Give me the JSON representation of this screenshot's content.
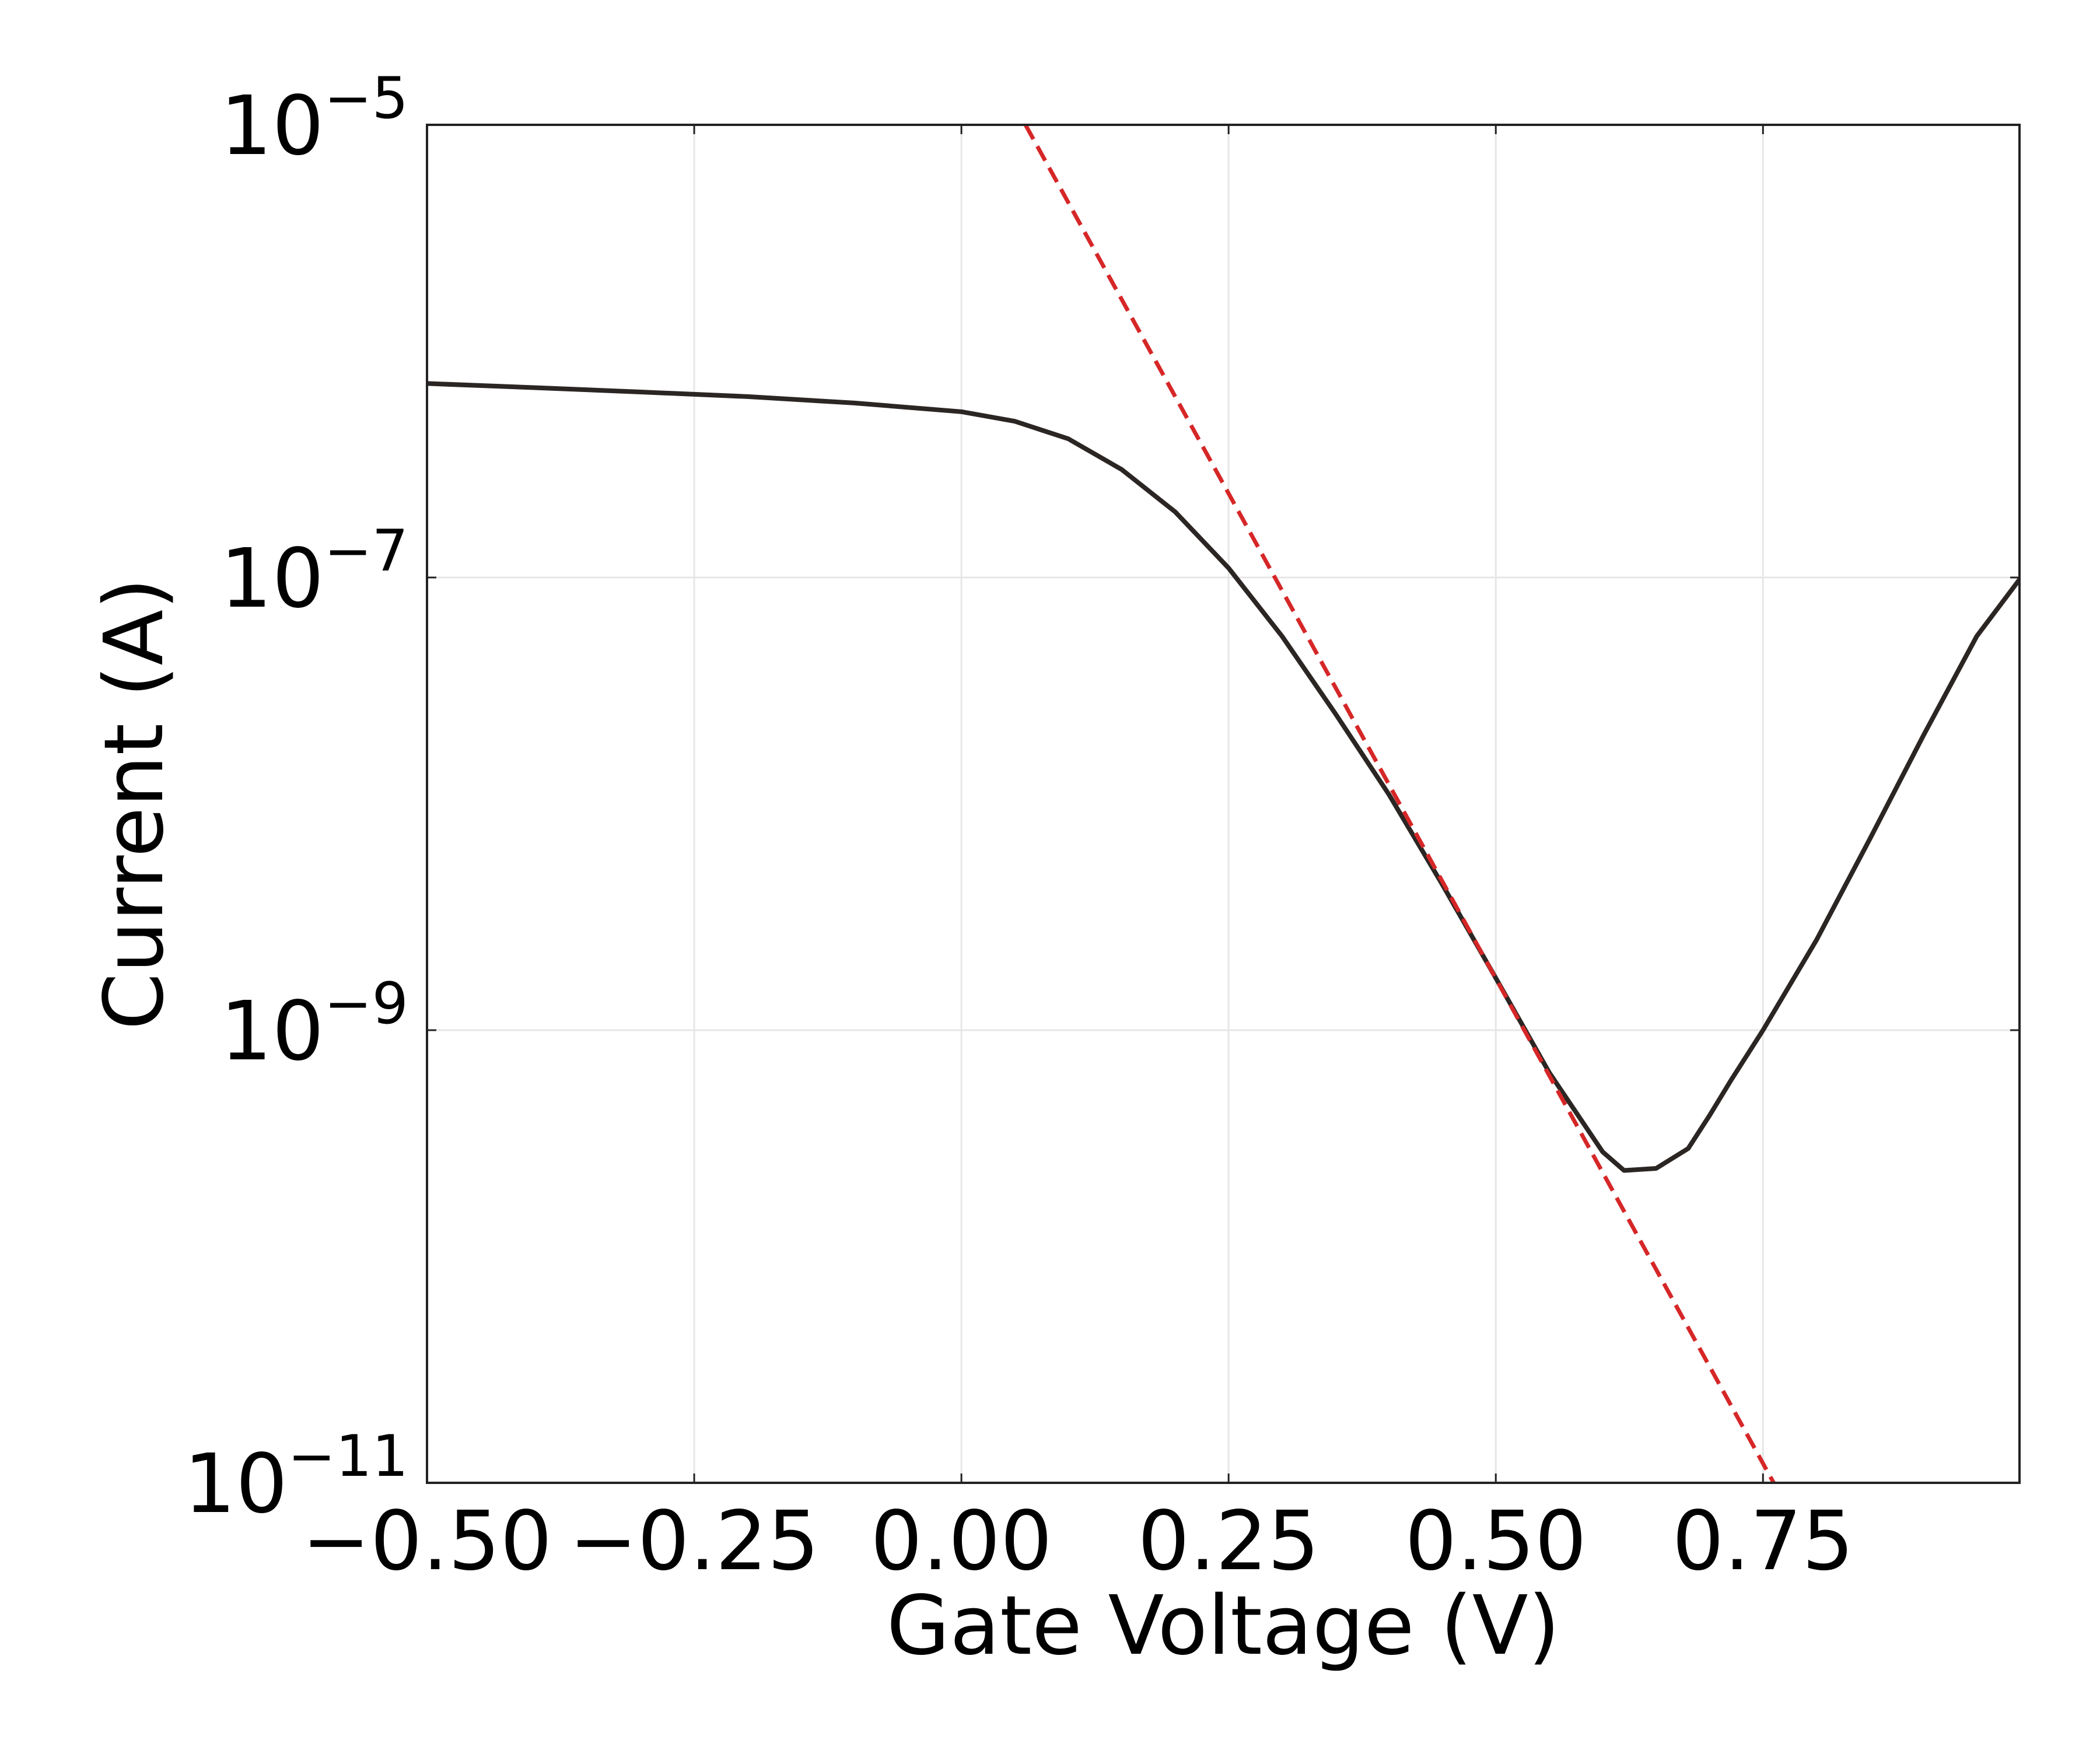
{
  "chart_data": {
    "type": "line",
    "title": "",
    "xlabel": "Gate Voltage (V)",
    "ylabel": "Current (A)",
    "xlim": [
      -0.5,
      0.99
    ],
    "ylim": [
      1e-11,
      1e-05
    ],
    "yscale": "log",
    "grid": true,
    "xticks": [
      {
        "value": -0.5,
        "label": "−0.50"
      },
      {
        "value": -0.25,
        "label": "−0.25"
      },
      {
        "value": 0.0,
        "label": "0.00"
      },
      {
        "value": 0.25,
        "label": "0.25"
      },
      {
        "value": 0.5,
        "label": "0.50"
      },
      {
        "value": 0.75,
        "label": "0.75"
      }
    ],
    "yticks": [
      {
        "value": 1e-05,
        "base": "10",
        "exp": "−5"
      },
      {
        "value": 1e-07,
        "base": "10",
        "exp": "−7"
      },
      {
        "value": 1e-09,
        "base": "10",
        "exp": "−9"
      },
      {
        "value": 1e-11,
        "base": "10",
        "exp": "−11"
      }
    ],
    "series": [
      {
        "style": "solid",
        "color": "#2b2623",
        "x": [
          -0.5,
          -0.4,
          -0.3,
          -0.2,
          -0.1,
          0.0,
          0.05,
          0.1,
          0.15,
          0.2,
          0.25,
          0.3,
          0.35,
          0.4,
          0.45,
          0.5,
          0.55,
          0.6,
          0.62,
          0.65,
          0.68,
          0.7,
          0.72,
          0.75,
          0.8,
          0.85,
          0.9,
          0.95,
          0.99
        ],
        "y": [
          7.2e-07,
          6.9e-07,
          6.6e-07,
          6.3e-07,
          5.9e-07,
          5.4e-07,
          4.9e-07,
          4.1e-07,
          3e-07,
          1.95e-07,
          1.1e-07,
          5.5e-08,
          2.5e-08,
          1.1e-08,
          4.4e-09,
          1.7e-09,
          6.5e-10,
          2.9e-10,
          2.4e-10,
          2.45e-10,
          3e-10,
          4.2e-10,
          6e-10,
          1e-09,
          2.5e-09,
          7e-09,
          2e-08,
          5.5e-08,
          9.8e-08
        ]
      },
      {
        "style": "dashed",
        "color": "#d62728",
        "x": [
          0.06,
          0.76
        ],
        "y": [
          1e-05,
          1e-11
        ]
      }
    ]
  }
}
